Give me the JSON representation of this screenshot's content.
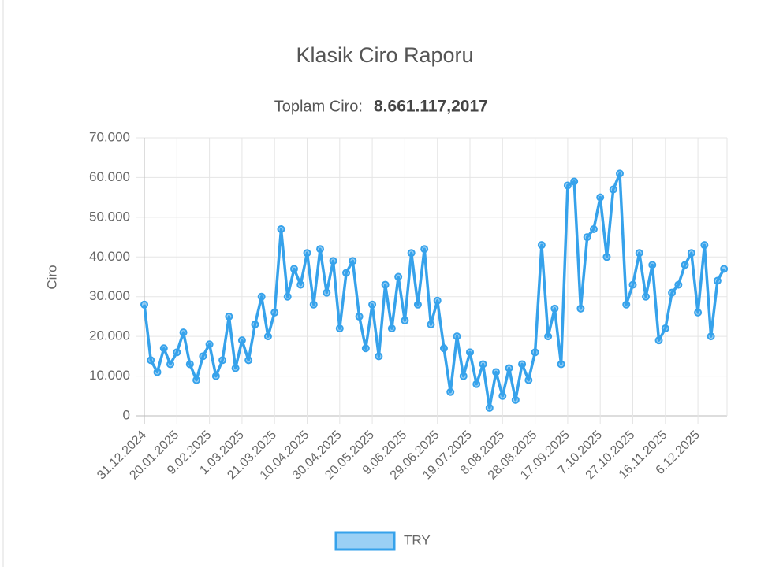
{
  "chart_data": {
    "type": "line",
    "title": "Klasik Ciro Raporu",
    "subtitle_label": "Toplam Ciro:",
    "subtitle_value": "8.661.117,2017",
    "y_label": "Ciro",
    "categories": [
      "31.12.2024",
      null,
      null,
      null,
      null,
      "20.01.2025",
      null,
      null,
      null,
      null,
      "9.02.2025",
      null,
      null,
      null,
      null,
      "1.03.2025",
      null,
      null,
      null,
      null,
      "21.03.2025",
      null,
      null,
      null,
      null,
      "10.04.2025",
      null,
      null,
      null,
      null,
      "30.04.2025",
      null,
      null,
      null,
      null,
      "20.05.2025",
      null,
      null,
      null,
      null,
      "9.06.2025",
      null,
      null,
      null,
      null,
      "29.06.2025",
      null,
      null,
      null,
      null,
      "19.07.2025",
      null,
      null,
      null,
      null,
      "8.08.2025",
      null,
      null,
      null,
      null,
      "28.08.2025",
      null,
      null,
      null,
      null,
      "17.09.2025",
      null,
      null,
      null,
      null,
      "7.10.2025",
      null,
      null,
      null,
      null,
      "27.10.2025",
      null,
      null,
      null,
      null,
      "16.11.2025",
      null,
      null,
      null,
      null,
      "6.12.2025",
      null,
      null,
      null,
      null
    ],
    "series": [
      {
        "name": "TRY",
        "color": "#36a2eb",
        "values": [
          28000,
          14000,
          11000,
          17000,
          13000,
          16000,
          21000,
          13000,
          9000,
          15000,
          18000,
          10000,
          14000,
          25000,
          12000,
          19000,
          14000,
          23000,
          30000,
          20000,
          26000,
          47000,
          30000,
          37000,
          33000,
          41000,
          28000,
          42000,
          31000,
          39000,
          22000,
          36000,
          39000,
          25000,
          17000,
          28000,
          15000,
          33000,
          22000,
          35000,
          24000,
          41000,
          28000,
          42000,
          23000,
          29000,
          17000,
          6000,
          20000,
          10000,
          16000,
          8000,
          13000,
          2000,
          11000,
          5000,
          12000,
          4000,
          13000,
          9000,
          16000,
          43000,
          20000,
          27000,
          13000,
          58000,
          59000,
          27000,
          45000,
          47000,
          55000,
          40000,
          57000,
          61000,
          28000,
          33000,
          41000,
          30000,
          38000,
          19000,
          22000,
          31000,
          33000,
          38000,
          41000,
          26000,
          43000,
          20000,
          34000,
          37000
        ]
      }
    ],
    "ylim": [
      0,
      70000
    ],
    "yticks": [
      0,
      {
        "value": 10000,
        "label": "10.000"
      },
      {
        "value": 20000,
        "label": "20.000"
      },
      {
        "value": 30000,
        "label": "30.000"
      },
      {
        "value": 40000,
        "label": "40.000"
      },
      {
        "value": 50000,
        "label": "50.000"
      },
      {
        "value": 60000,
        "label": "60.000"
      },
      {
        "value": 70000,
        "label": "70.000"
      }
    ],
    "grid": true
  }
}
